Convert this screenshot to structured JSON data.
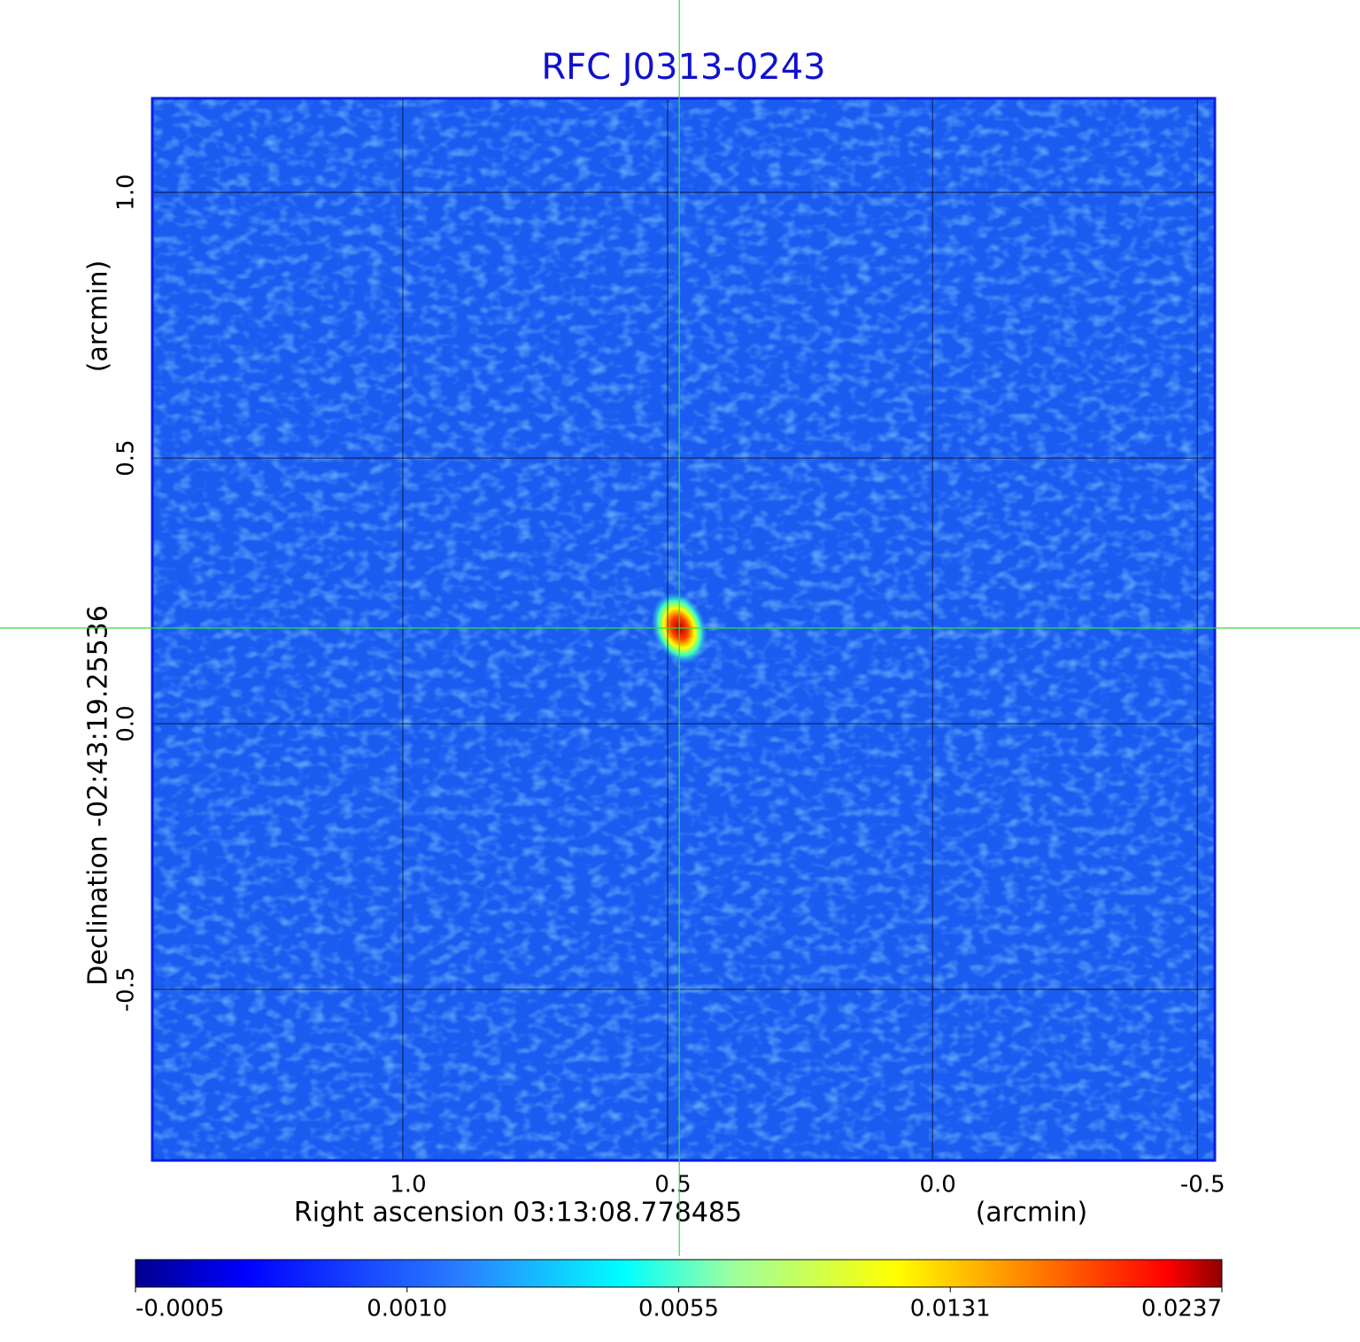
{
  "chart_data": {
    "type": "image",
    "title": "RFC J0313-0243",
    "x_label": "Right ascension  03:13:08.778485",
    "x_unit": "(arcmin)",
    "y_label": "Declination  -02:43:19.25536",
    "y_unit": "(arcmin)",
    "xlim": [
      1.473,
      -0.533
    ],
    "ylim": [
      -0.822,
      1.177
    ],
    "xticks": [
      {
        "value": 1,
        "label": "1.0"
      },
      0.5,
      {
        "value": 0,
        "label": "0.0"
      },
      -0.5
    ],
    "yticks": [
      {
        "value": 1,
        "label": "1.0"
      },
      0.5,
      {
        "value": 0,
        "label": "0.0"
      },
      -0.5
    ],
    "grid": true,
    "colormap": "jet",
    "background_color": "#1a5cf0",
    "crosshair": {
      "x": 0.478,
      "y": 0.18,
      "color": "#33dd33"
    },
    "colorbar_ticks": [
      {
        "value": -0.0005,
        "label": "-0.0005"
      },
      {
        "value": 0.001,
        "label": "0.0010"
      },
      0.0055,
      0.0131,
      0.0237
    ]
  }
}
